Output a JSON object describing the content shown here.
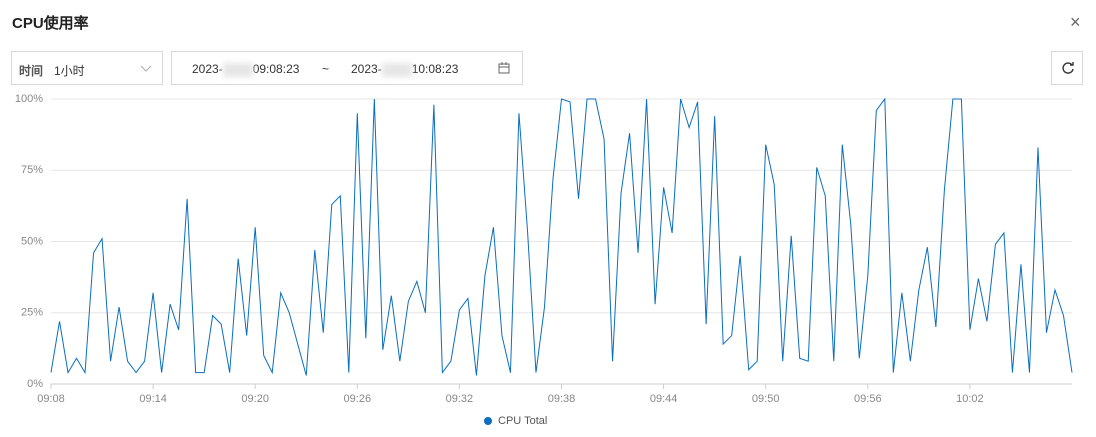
{
  "header": {
    "title": "CPU使用率",
    "close": "×"
  },
  "controls": {
    "time_label": "时间",
    "range_select": "1小时",
    "start_prefix": "2023-",
    "start_time": "09:08:23",
    "separator": "~",
    "end_prefix": "2023-",
    "end_time": "10:08:23"
  },
  "chart_data": {
    "type": "line",
    "categories": [
      "09:08",
      null,
      null,
      null,
      null,
      null,
      null,
      null,
      null,
      null,
      null,
      null,
      "09:14",
      null,
      null,
      null,
      null,
      null,
      null,
      null,
      null,
      null,
      null,
      null,
      "09:20",
      null,
      null,
      null,
      null,
      null,
      null,
      null,
      null,
      null,
      null,
      null,
      "09:26",
      null,
      null,
      null,
      null,
      null,
      null,
      null,
      null,
      null,
      null,
      null,
      "09:32",
      null,
      null,
      null,
      null,
      null,
      null,
      null,
      null,
      null,
      null,
      null,
      "09:38",
      null,
      null,
      null,
      null,
      null,
      null,
      null,
      null,
      null,
      null,
      null,
      "09:44",
      null,
      null,
      null,
      null,
      null,
      null,
      null,
      null,
      null,
      null,
      null,
      "09:50",
      null,
      null,
      null,
      null,
      null,
      null,
      null,
      null,
      null,
      null,
      null,
      "09:56",
      null,
      null,
      null,
      null,
      null,
      null,
      null,
      null,
      null,
      null,
      null,
      "10:02",
      null,
      null,
      null,
      null,
      null,
      null,
      null,
      null,
      null,
      null,
      null,
      null
    ],
    "series": [
      {
        "name": "CPU Total",
        "color": "#0b6ebf",
        "values": [
          4,
          22,
          4,
          9,
          4,
          46,
          51,
          8,
          27,
          8,
          4,
          8,
          32,
          4,
          28,
          19,
          65,
          4,
          4,
          24,
          21,
          4,
          44,
          17,
          55,
          10,
          4,
          32,
          25,
          14,
          3,
          47,
          18,
          63,
          66,
          4,
          95,
          16,
          100,
          12,
          31,
          8,
          29,
          36,
          25,
          98,
          4,
          8,
          26,
          30,
          3,
          38,
          55,
          17,
          4,
          95,
          54,
          4,
          27,
          72,
          100,
          99,
          65,
          100,
          100,
          86,
          8,
          67,
          88,
          46,
          100,
          28,
          69,
          53,
          100,
          90,
          99,
          21,
          94,
          14,
          17,
          45,
          5,
          8,
          84,
          70,
          8,
          52,
          9,
          8,
          76,
          66,
          8,
          84,
          56,
          9,
          38,
          96,
          100,
          4,
          32,
          8,
          33,
          48,
          20,
          68,
          100,
          100,
          19,
          37,
          22,
          49,
          53,
          4,
          42,
          4,
          83,
          18,
          33,
          24,
          4
        ]
      }
    ],
    "ylim": [
      0,
      100
    ],
    "yticks": [
      {
        "value": 0,
        "label": "0%"
      },
      {
        "value": 25,
        "label": "25%"
      },
      {
        "value": 50,
        "label": "50%"
      },
      {
        "value": 75,
        "label": "75%"
      },
      {
        "value": 100,
        "label": "100%"
      }
    ],
    "grid": true
  }
}
